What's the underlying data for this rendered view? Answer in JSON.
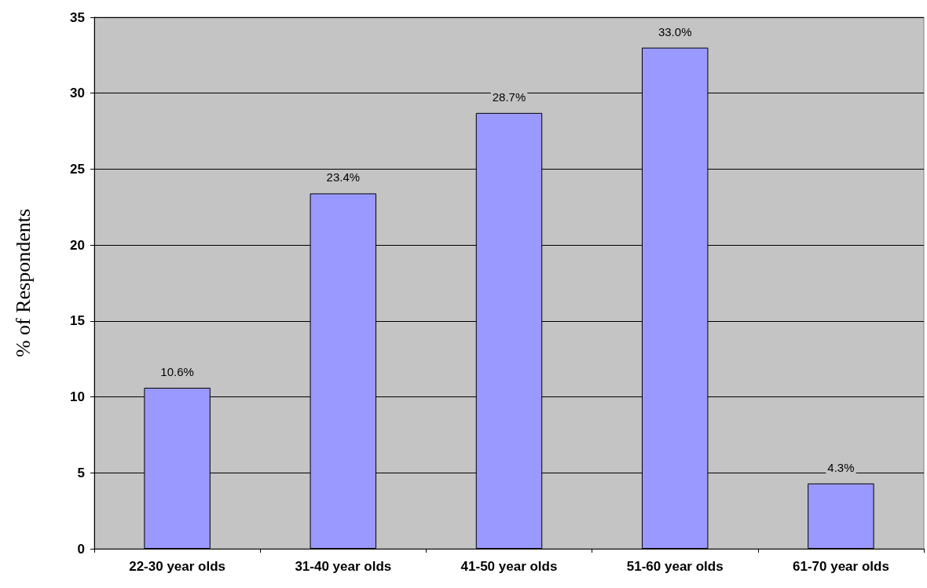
{
  "chart_data": {
    "type": "bar",
    "ylabel": "% of Respondents",
    "categories": [
      "22-30 year olds",
      "31-40 year olds",
      "41-50 year olds",
      "51-60 year olds",
      "61-70 year olds"
    ],
    "values": [
      10.6,
      23.4,
      28.7,
      33.0,
      4.3
    ],
    "value_labels": [
      "10.6%",
      "23.4%",
      "28.7%",
      "33.0%",
      "4.3%"
    ],
    "color": "#9999ff",
    "ylim": [
      0,
      35
    ],
    "yticks": [
      0,
      5,
      10,
      15,
      20,
      25,
      30,
      35
    ],
    "grid": "y"
  }
}
